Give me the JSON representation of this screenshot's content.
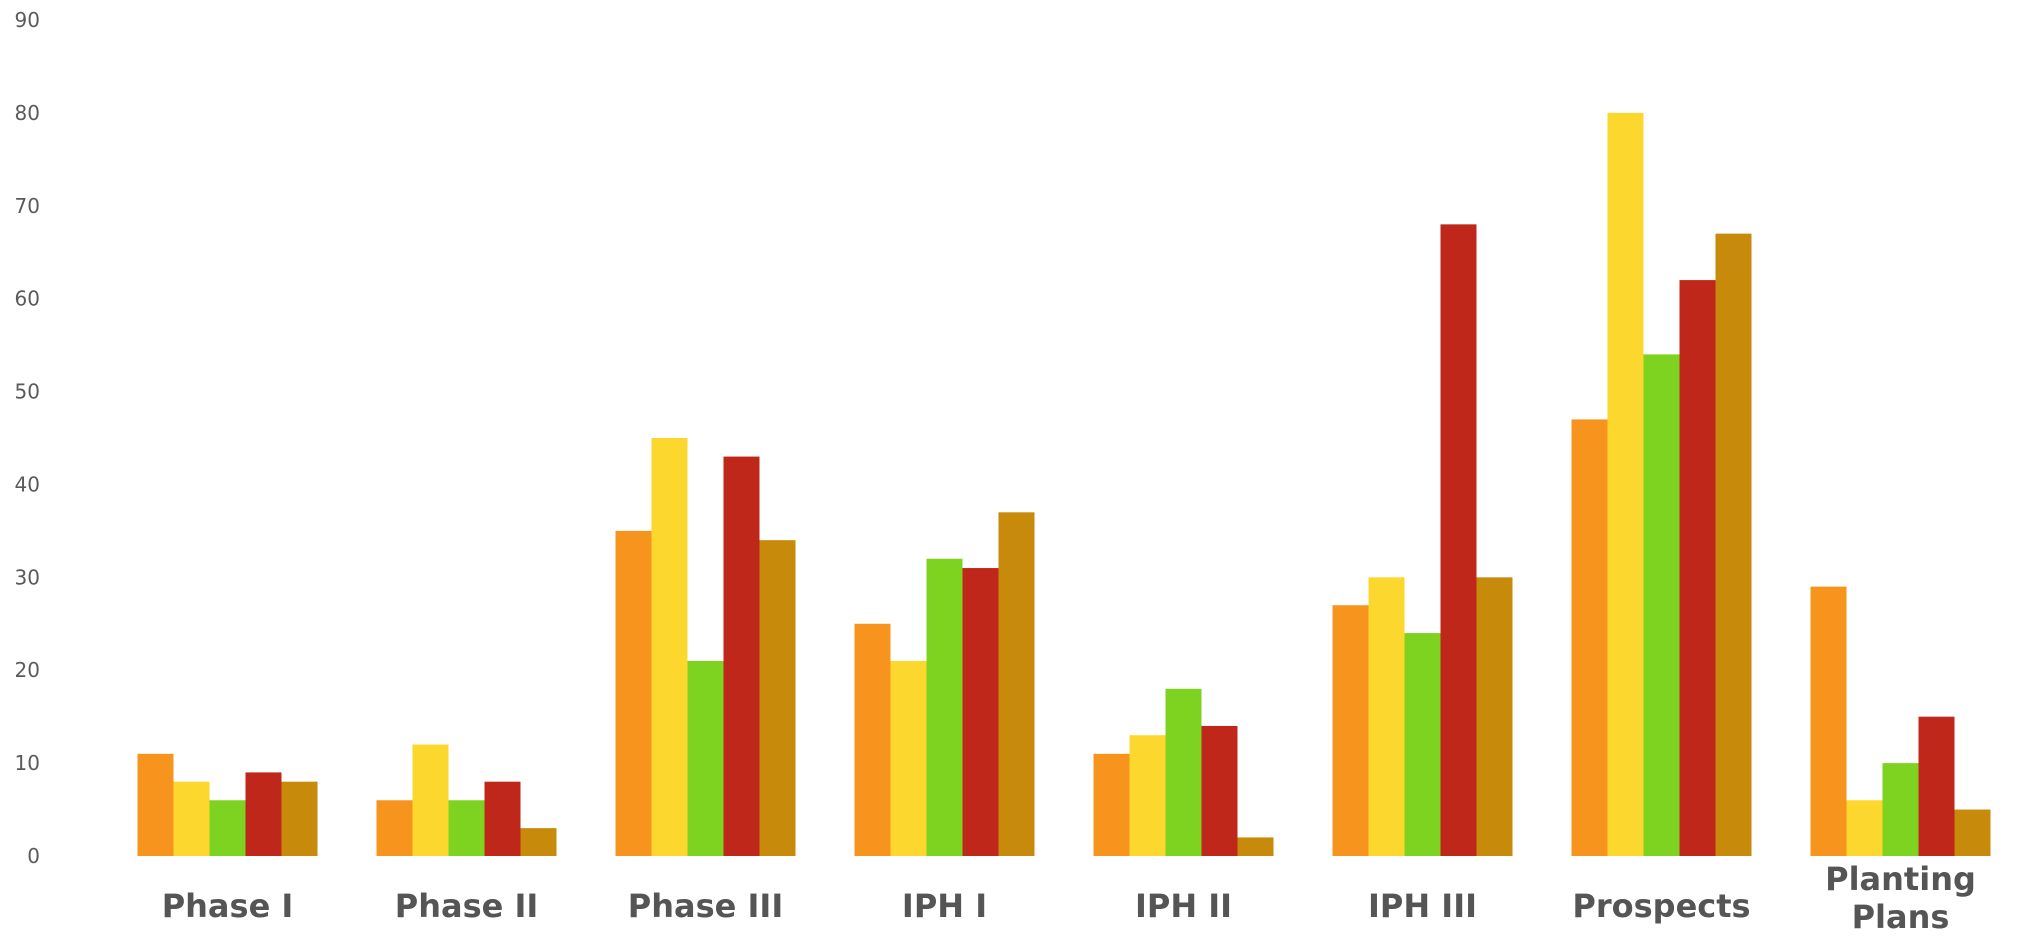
{
  "chart_data": {
    "type": "bar",
    "title": "",
    "xlabel": "",
    "ylabel": "",
    "ylim": [
      0,
      90
    ],
    "yticks": [
      0,
      10,
      20,
      30,
      40,
      50,
      60,
      70,
      80,
      90
    ],
    "grid": false,
    "legend": "none",
    "categories": [
      [
        "Phase I"
      ],
      [
        "Phase II"
      ],
      [
        "Phase III"
      ],
      [
        "IPH I"
      ],
      [
        "IPH II"
      ],
      [
        "IPH III"
      ],
      [
        "Prospects"
      ],
      [
        "Planting",
        "Plans"
      ]
    ],
    "series": [
      {
        "color": "#f7941d",
        "values": [
          11,
          6,
          35,
          25,
          11,
          27,
          47,
          29
        ]
      },
      {
        "color": "#fcd72e",
        "values": [
          8,
          12,
          45,
          21,
          13,
          30,
          80,
          6
        ]
      },
      {
        "color": "#7ed321",
        "values": [
          6,
          6,
          21,
          32,
          18,
          24,
          54,
          10
        ]
      },
      {
        "color": "#c0271b",
        "values": [
          9,
          8,
          43,
          31,
          14,
          68,
          62,
          15
        ]
      },
      {
        "color": "#c88a0a",
        "values": [
          8,
          3,
          34,
          37,
          2,
          30,
          67,
          5
        ]
      }
    ]
  }
}
